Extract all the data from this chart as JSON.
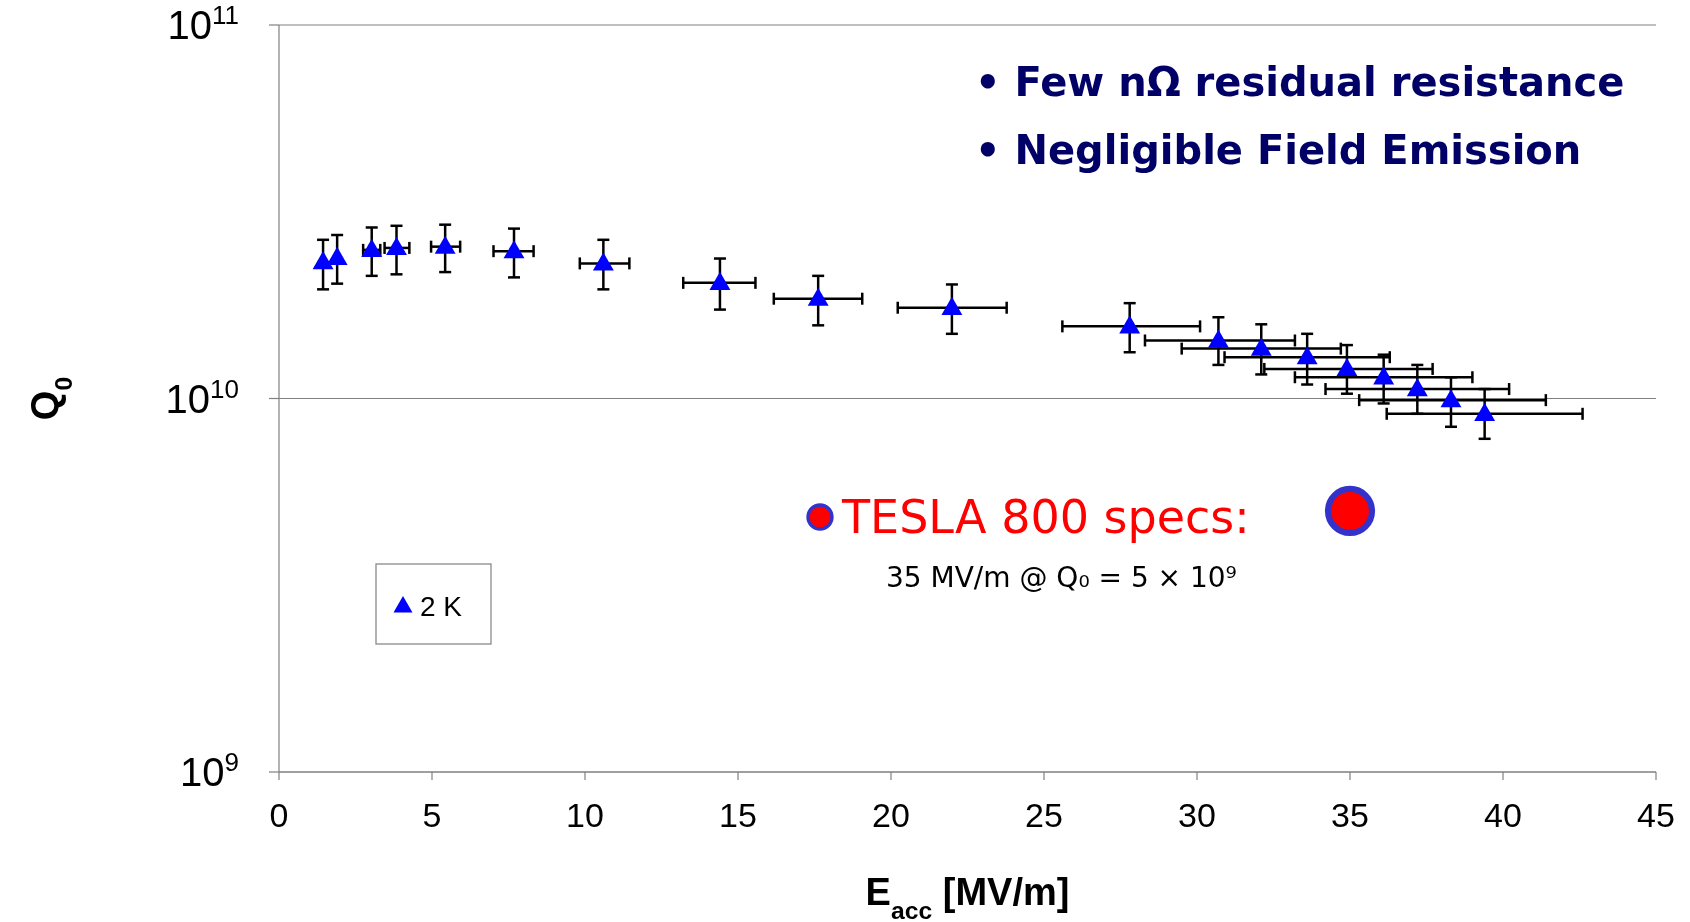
{
  "chart_data": {
    "type": "scatter",
    "xlabel": "E$_{acc}$ [MV/m]",
    "ylabel": "Q$_{0}$",
    "log": "y",
    "xlim": [
      0,
      45
    ],
    "xticks": [
      0,
      5,
      10,
      15,
      20,
      25,
      30,
      35,
      40,
      45
    ],
    "ylim": [
      1000000000.0,
      100000000000.0
    ],
    "yticks": [
      {
        "value": 1000000000.0,
        "label": "10$^{9}$"
      },
      {
        "value": 10000000000.0,
        "label": "10$^{10}$"
      },
      {
        "value": 100000000000.0,
        "label": "10$^{11}$"
      }
    ],
    "grid": "y",
    "legend": "bottom left",
    "series": [
      {
        "name": "2 K",
        "color": "#0000ff",
        "marker": "triangle",
        "x": [
          1.44,
          1.9,
          3.03,
          3.84,
          5.43,
          7.68,
          10.6,
          14.41,
          17.62,
          21.99,
          27.8,
          30.7,
          32.1,
          33.6,
          34.9,
          36.1,
          37.2,
          38.3,
          39.4
        ],
        "values": [
          23200000000.0,
          23800000000.0,
          25000000000.0,
          25300000000.0,
          25500000000.0,
          24800000000.0,
          23000000000.0,
          20400000000.0,
          18500000000.0,
          17500000000.0,
          15600000000.0,
          14300000000.0,
          13600000000.0,
          12900000000.0,
          12000000000.0,
          11400000000.0,
          10600000000.0,
          9900000000.0,
          9100000000.0
        ],
        "errors": [
          [
            19600000000.0,
            26600000000.0
          ],
          [
            20300000000.0,
            27400000000.0
          ],
          [
            21300000000.0,
            28700000000.0
          ],
          [
            21500000000.0,
            29000000000.0
          ],
          [
            21800000000.0,
            29200000000.0
          ],
          [
            21100000000.0,
            28500000000.0
          ],
          [
            19600000000.0,
            26600000000.0
          ],
          [
            17300000000.0,
            23700000000.0
          ],
          [
            15700000000.0,
            21300000000.0
          ],
          [
            14900000000.0,
            20200000000.0
          ],
          [
            13300000000.0,
            18000000000.0
          ],
          [
            12300000000.0,
            16500000000.0
          ],
          [
            11600000000.0,
            15800000000.0
          ],
          [
            10900000000.0,
            14900000000.0
          ],
          [
            10300000000.0,
            13900000000.0
          ],
          [
            9700000000.0,
            13100000000.0
          ],
          [
            9100000000.0,
            12300000000.0
          ],
          [
            8400000000.0,
            11400000000.0
          ],
          [
            7800000000.0,
            10600000000.0
          ]
        ],
        "xerrors": [
          null,
          null,
          [
            2.75,
            3.31
          ],
          [
            3.45,
            4.26
          ],
          [
            4.97,
            5.92
          ],
          [
            7.01,
            8.32
          ],
          [
            9.83,
            11.45
          ],
          [
            13.21,
            15.57
          ],
          [
            16.17,
            19.06
          ],
          [
            20.22,
            23.78
          ],
          [
            25.6,
            30.1
          ],
          [
            28.3,
            33.2
          ],
          [
            29.5,
            34.7
          ],
          [
            30.9,
            36.3
          ],
          [
            32.2,
            37.7
          ],
          [
            33.2,
            39.0
          ],
          [
            34.2,
            40.2
          ],
          [
            35.3,
            41.4
          ],
          [
            36.2,
            42.6
          ]
        ]
      },
      {
        "name": "TESLA 800 specs:",
        "color": "#ff0000",
        "marker": "circle",
        "x": [
          35
        ],
        "values": [
          5000000000.0
        ]
      }
    ],
    "annotations": [
      "• Few nΩ residual resistance",
      "• Negligible Field Emission",
      "35 MV/m @ Q₀ = 5 × 10⁹"
    ]
  }
}
